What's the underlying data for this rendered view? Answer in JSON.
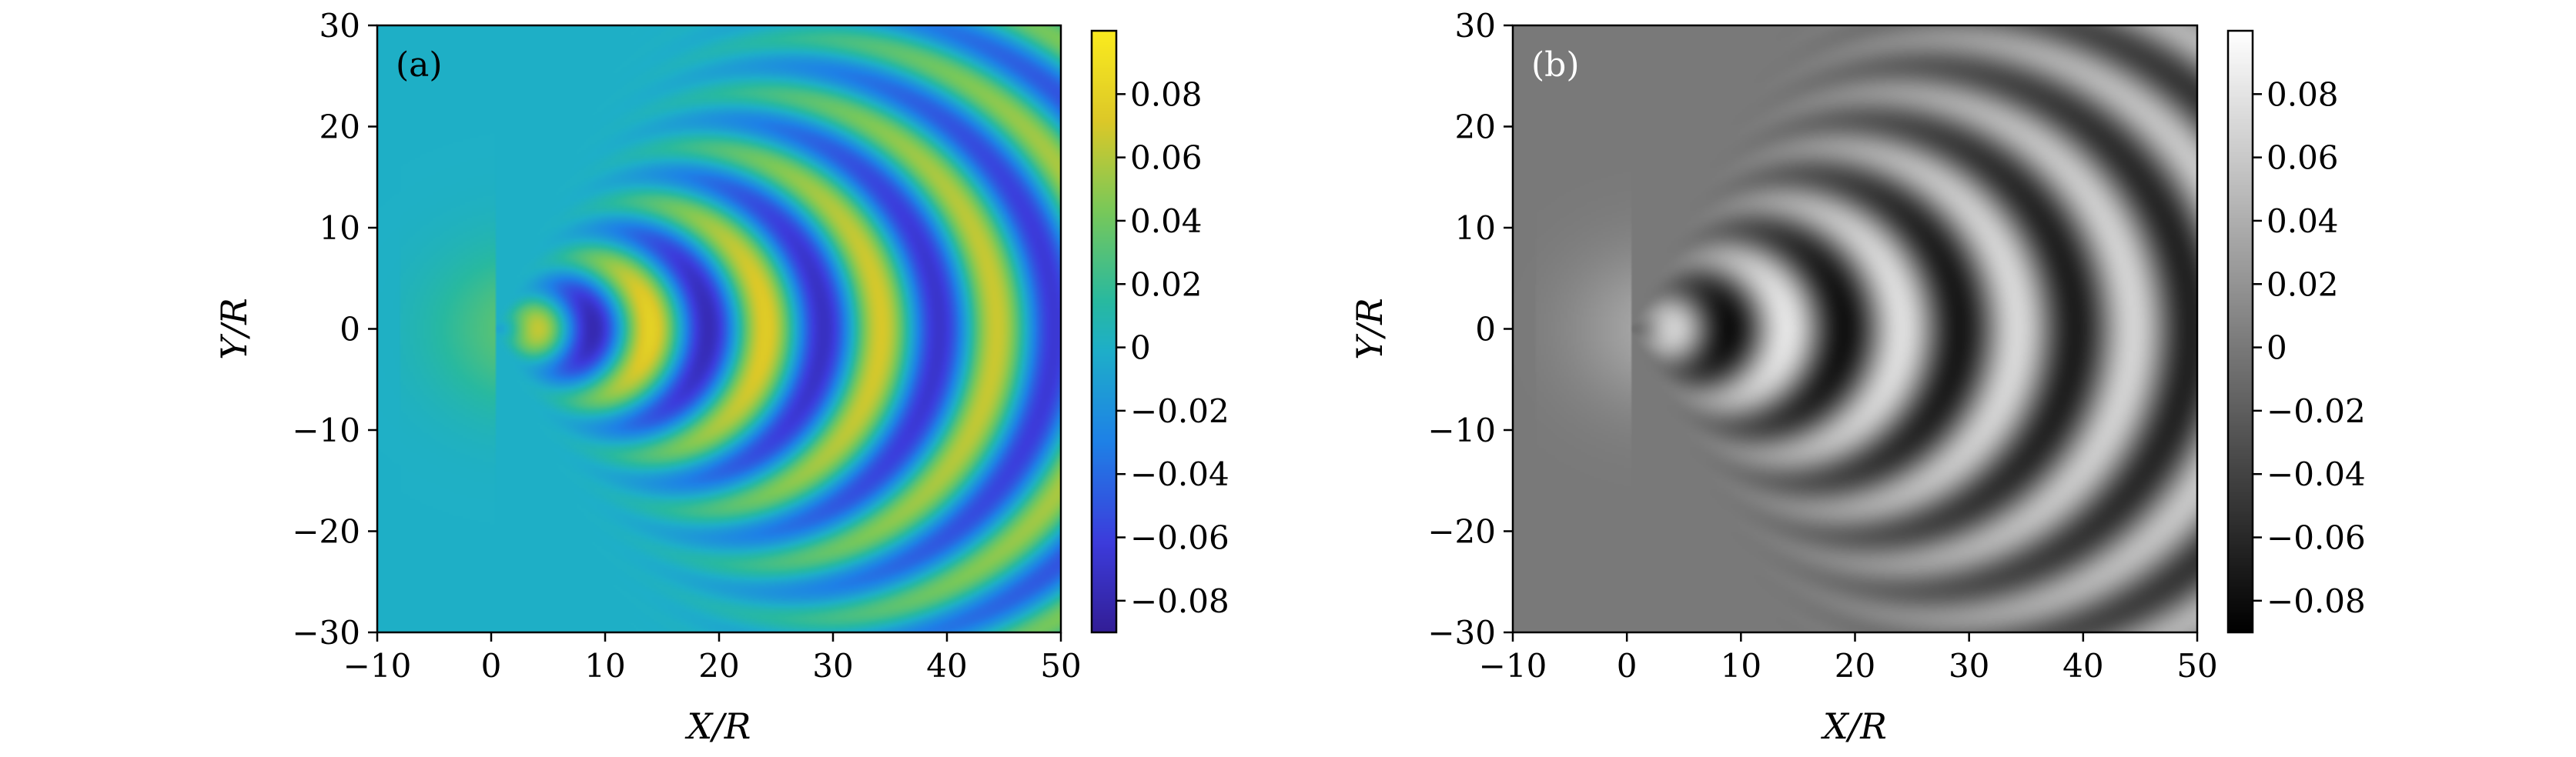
{
  "chart_data": [
    {
      "type": "heatmap",
      "panel_label": "(a)",
      "colormap": "viridis",
      "xlabel": "X/R",
      "ylabel": "Y/R",
      "xlim": [
        -10,
        50
      ],
      "ylim": [
        -30,
        30
      ],
      "xticks": [
        -10,
        0,
        10,
        20,
        30,
        40,
        50
      ],
      "yticks": [
        -30,
        -20,
        -10,
        0,
        10,
        20,
        30
      ],
      "xtick_labels": [
        "−10",
        "0",
        "10",
        "20",
        "30",
        "40",
        "50"
      ],
      "ytick_labels": [
        "−30",
        "−20",
        "−10",
        "0",
        "10",
        "20",
        "30"
      ],
      "colorbar": {
        "range": [
          -0.09,
          0.1
        ],
        "ticks": [
          0.08,
          0.06,
          0.04,
          0.02,
          0,
          -0.02,
          -0.04,
          -0.06,
          -0.08
        ],
        "tick_labels": [
          "0.08",
          "0.06",
          "0.04",
          "0.02",
          "0",
          "−0.02",
          "−0.04",
          "−0.06",
          "−0.08"
        ]
      },
      "field": "Kelvin ship-wake wave elevation pattern with source at X/R ≈ 0, crests opening downstream",
      "colors": {
        "low": "#3b1e9e",
        "mid": "#1fb4ac",
        "high": "#f7e81c"
      }
    },
    {
      "type": "heatmap",
      "panel_label": "(b)",
      "colormap": "gray",
      "xlabel": "X/R",
      "ylabel": "Y/R",
      "xlim": [
        -10,
        50
      ],
      "ylim": [
        -30,
        30
      ],
      "xticks": [
        -10,
        0,
        10,
        20,
        30,
        40,
        50
      ],
      "yticks": [
        -30,
        -20,
        -10,
        0,
        10,
        20,
        30
      ],
      "xtick_labels": [
        "−10",
        "0",
        "10",
        "20",
        "30",
        "40",
        "50"
      ],
      "ytick_labels": [
        "−30",
        "−20",
        "−10",
        "0",
        "10",
        "20",
        "30"
      ],
      "colorbar": {
        "range": [
          -0.09,
          0.1
        ],
        "ticks": [
          0.08,
          0.06,
          0.04,
          0.02,
          0,
          -0.02,
          -0.04,
          -0.06,
          -0.08
        ],
        "tick_labels": [
          "0.08",
          "0.06",
          "0.04",
          "0.02",
          "0",
          "−0.02",
          "−0.04",
          "−0.06",
          "−0.08"
        ]
      },
      "field": "Kelvin ship-wake wave elevation pattern (grayscale), source at X/R ≈ 0",
      "colors": {
        "low": "#000000",
        "mid": "#808080",
        "high": "#ffffff"
      }
    }
  ]
}
